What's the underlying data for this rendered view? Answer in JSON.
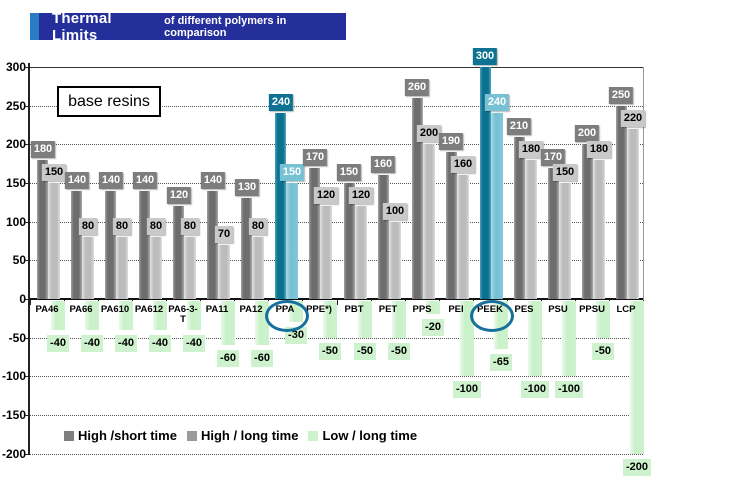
{
  "title": {
    "main": "Thermal Limits",
    "sub": "of different polymers in comparison"
  },
  "colors": {
    "banner_bg": "#252f9b",
    "banner_accent": "#2b7dc3",
    "page_bg": "#ffffff",
    "axis": "#222222",
    "gridline": "#555555",
    "highlight_ellipse": "#176f9c"
  },
  "legend": [
    {
      "label": "High /short time",
      "color": "#7f7f7f"
    },
    {
      "label": "High / long time",
      "color": "#9a9a9a"
    },
    {
      "label": "Low / long time",
      "color": "#cdf2cd"
    }
  ],
  "chart_data": {
    "type": "bar",
    "title": "Thermal Limits of different polymers in comparison",
    "annotation": "base resins",
    "ylim": [
      -200,
      300
    ],
    "yticks": [
      300,
      250,
      200,
      150,
      100,
      50,
      0,
      -50,
      -100,
      -150,
      -200
    ],
    "grid": true,
    "legend_position": "inside-bottom-left",
    "categories": [
      "PA46",
      "PA66",
      "PA610",
      "PA612",
      "PA6-3-T",
      "PA11",
      "PA12",
      "PPA",
      "PPE*)",
      "PBT",
      "PET",
      "PPS",
      "PEI",
      "PEEK",
      "PES",
      "PSU",
      "PPSU",
      "LCP"
    ],
    "category_display_overrides": {
      "PA6-3-T": "PA6-3-\nT"
    },
    "highlighted_categories": [
      "PPA",
      "PEEK"
    ],
    "highlight_colors": {
      "dark": "#0e7392",
      "light": "#77c1d4"
    },
    "series": [
      {
        "name": "High /short time",
        "color": "#7d7d7d",
        "values": [
          180,
          140,
          140,
          140,
          120,
          140,
          130,
          240,
          170,
          150,
          160,
          260,
          190,
          300,
          210,
          170,
          200,
          250
        ]
      },
      {
        "name": "High / long time",
        "color": "#c9c9c9",
        "values": [
          150,
          80,
          80,
          80,
          80,
          70,
          80,
          150,
          120,
          120,
          100,
          200,
          160,
          240,
          180,
          150,
          180,
          220
        ]
      },
      {
        "name": "Low / long time",
        "color": "#cdf2cd",
        "values": [
          -40,
          -40,
          -40,
          -40,
          -40,
          -60,
          -60,
          -30,
          -50,
          -50,
          -50,
          -20,
          -100,
          -65,
          -100,
          -100,
          -50,
          -200
        ]
      }
    ]
  }
}
